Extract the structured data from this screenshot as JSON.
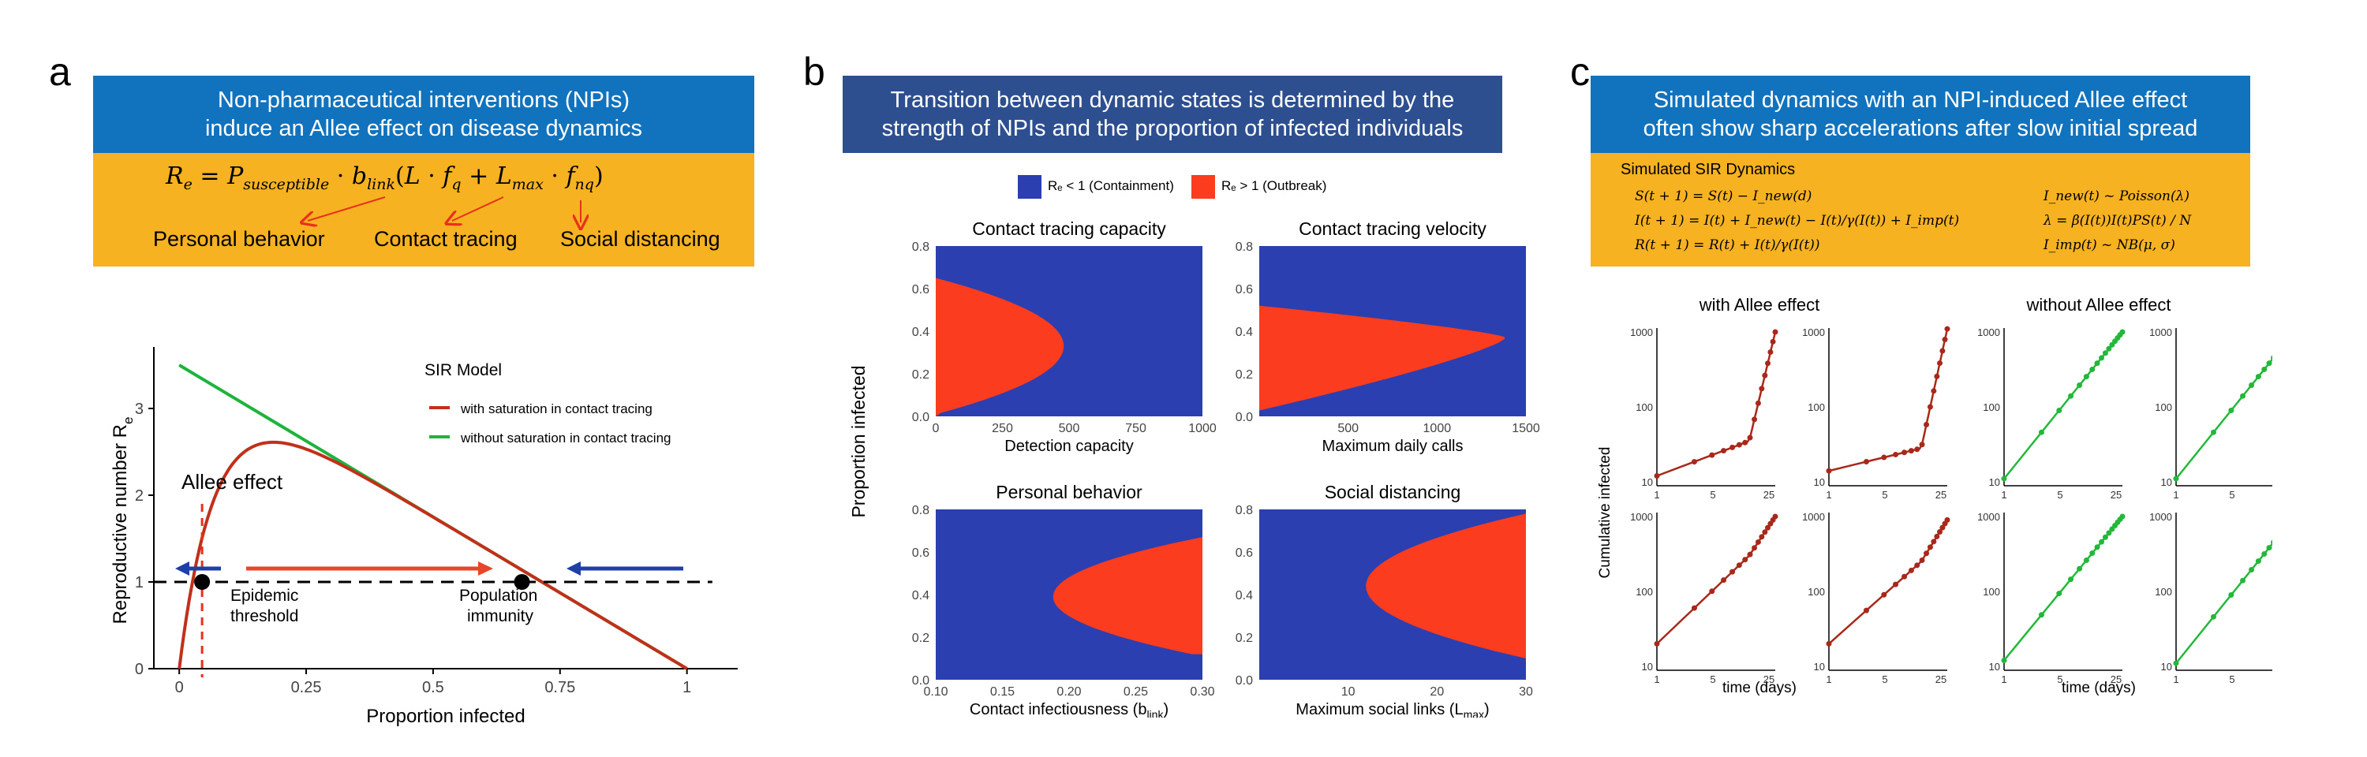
{
  "panels": {
    "a": "a",
    "b": "b",
    "c": "c"
  },
  "a": {
    "header": "Non-pharmaceutical interventions (NPIs)\ninduce an Allee effect on disease dynamics",
    "equation": {
      "lhs": "R",
      "lhs_sub": "e",
      "p": "P",
      "p_sub": "susceptible",
      "b": "b",
      "b_sub": "link",
      "L": "L",
      "fq": "f",
      "fq_sub": "q",
      "Lmax": "L",
      "Lmax_sub": "max",
      "fnq": "f",
      "fnq_sub": "nq"
    },
    "factor_labels": [
      "Personal behavior",
      "Contact tracing",
      "Social distancing"
    ],
    "plot": {
      "xlabel": "Proportion infected",
      "ylabel": "Reproductive number  R",
      "ylabel_sub": "e",
      "xticks": [
        "0",
        "0.25",
        "0.5",
        "0.75",
        "1"
      ],
      "yticks": [
        "0",
        "1",
        "2",
        "3"
      ],
      "legend_title": "SIR Model",
      "legend": [
        "with saturation in contact tracing",
        "without saturation in contact tracing"
      ],
      "annotations": {
        "allee": "Allee effect",
        "epi1": "Epidemic",
        "epi2": "threshold",
        "pop1": "Population",
        "pop2": "immunity"
      },
      "colors": {
        "red": "#c0301a",
        "green": "#1db33c",
        "arrow_red": "#e8452a",
        "arrow_blue": "#1f3fa8"
      }
    }
  },
  "b": {
    "header": "Transition between dynamic states is determined by the\nstrength of NPIs and the proportion of infected individuals",
    "legend": [
      {
        "label": "Rₑ < 1 (Containment)",
        "color": "#2c3fb0"
      },
      {
        "label": "Rₑ > 1 (Outbreak)",
        "color": "#fb3c1f"
      }
    ],
    "ylabel": "Proportion infected",
    "subplots": [
      {
        "title": "Contact tracing capacity",
        "xlabel": "Detection capacity",
        "xticks": [
          "0",
          "250",
          "500",
          "750",
          "1000"
        ],
        "yticks": [
          "0.0",
          "0.2",
          "0.4",
          "0.6",
          "0.8"
        ]
      },
      {
        "title": "Contact tracing velocity",
        "xlabel": "Maximum daily calls",
        "xticks": [
          "500",
          "1000",
          "1500"
        ],
        "yticks": [
          "0.0",
          "0.2",
          "0.4",
          "0.6",
          "0.8"
        ]
      },
      {
        "title": "Personal behavior",
        "xlabel": "Contact infectiousness (b",
        "xlabel_sub": "link",
        "xlabel_end": ")",
        "xticks": [
          "0.10",
          "0.15",
          "0.20",
          "0.25",
          "0.30"
        ],
        "yticks": [
          "0.0",
          "0.2",
          "0.4",
          "0.6",
          "0.8"
        ]
      },
      {
        "title": "Social distancing",
        "xlabel": "Maximum social links (L",
        "xlabel_sub": "max",
        "xlabel_end": ")",
        "xticks": [
          "10",
          "20",
          "30"
        ],
        "yticks": [
          "0.0",
          "0.2",
          "0.4",
          "0.6",
          "0.8"
        ]
      }
    ]
  },
  "c": {
    "header": "Simulated dynamics with an NPI-induced Allee effect\noften show sharp accelerations after slow initial spread",
    "box_title": "Simulated SIR Dynamics",
    "eq_left": [
      "S(t + 1) = S(t) − I_new(d)",
      "I(t + 1) = I(t) + I_new(t) − I(t)/γ(I(t)) + I_imp(t)",
      "R(t + 1) = R(t) + I(t)/γ(I(t))"
    ],
    "eq_right": [
      "I_new(t) ~ Poisson(λ)",
      "λ = β(I(t))I(t)PS(t) / N",
      "I_imp(t) ~ NB(μ, σ)"
    ],
    "group_titles": [
      "with Allee effect",
      "without Allee effect"
    ],
    "ylabel": "Cumulative infected",
    "xlabel": "time (days)",
    "xticks": [
      "1",
      "5",
      "25"
    ],
    "yticks": [
      "10",
      "100",
      "1000"
    ],
    "colors": {
      "allee": "#a8291b",
      "noallee": "#22b83a"
    }
  }
}
